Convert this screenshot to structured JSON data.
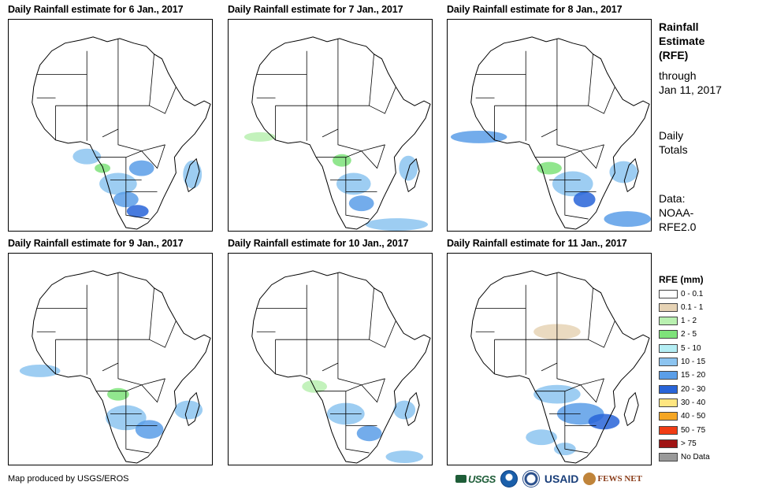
{
  "panels": [
    {
      "title": "Daily Rainfall estimate for 6 Jan., 2017"
    },
    {
      "title": "Daily Rainfall estimate for 7 Jan., 2017"
    },
    {
      "title": "Daily Rainfall estimate for 8 Jan., 2017"
    },
    {
      "title": "Daily Rainfall estimate for 9 Jan., 2017"
    },
    {
      "title": "Daily Rainfall estimate for 10 Jan., 2017"
    },
    {
      "title": "Daily Rainfall estimate for 11 Jan., 2017"
    }
  ],
  "sidebar": {
    "title_lines": [
      "Rainfall",
      "Estimate",
      "(RFE)"
    ],
    "through_lines": [
      "through",
      "Jan 11, 2017"
    ],
    "totals_lines": [
      "Daily",
      "Totals"
    ],
    "data_lines": [
      "Data:",
      "NOAA-",
      "RFE2.0"
    ]
  },
  "legend": {
    "title": "RFE (mm)",
    "items": [
      {
        "label": "0 - 0.1",
        "color": "#ffffff"
      },
      {
        "label": "0.1 - 1",
        "color": "#e6d3b5"
      },
      {
        "label": "1 - 2",
        "color": "#b9f0b0"
      },
      {
        "label": "2 - 5",
        "color": "#7ee27a"
      },
      {
        "label": "5 - 10",
        "color": "#b4eef4"
      },
      {
        "label": "10 - 15",
        "color": "#8cc4f0"
      },
      {
        "label": "15 - 20",
        "color": "#5a9ee8"
      },
      {
        "label": "20 - 30",
        "color": "#2864d8"
      },
      {
        "label": "30 - 40",
        "color": "#ffe680"
      },
      {
        "label": "40 - 50",
        "color": "#f5a623"
      },
      {
        "label": "50 - 75",
        "color": "#f03c14"
      },
      {
        "label": "> 75",
        "color": "#a01414"
      },
      {
        "label": "No Data",
        "color": "#9a9a9a"
      }
    ]
  },
  "credit": "Map produced by USGS/EROS",
  "logos": {
    "usgs": "USGS",
    "usaid": "USAID",
    "fews": "FEWS NET"
  }
}
